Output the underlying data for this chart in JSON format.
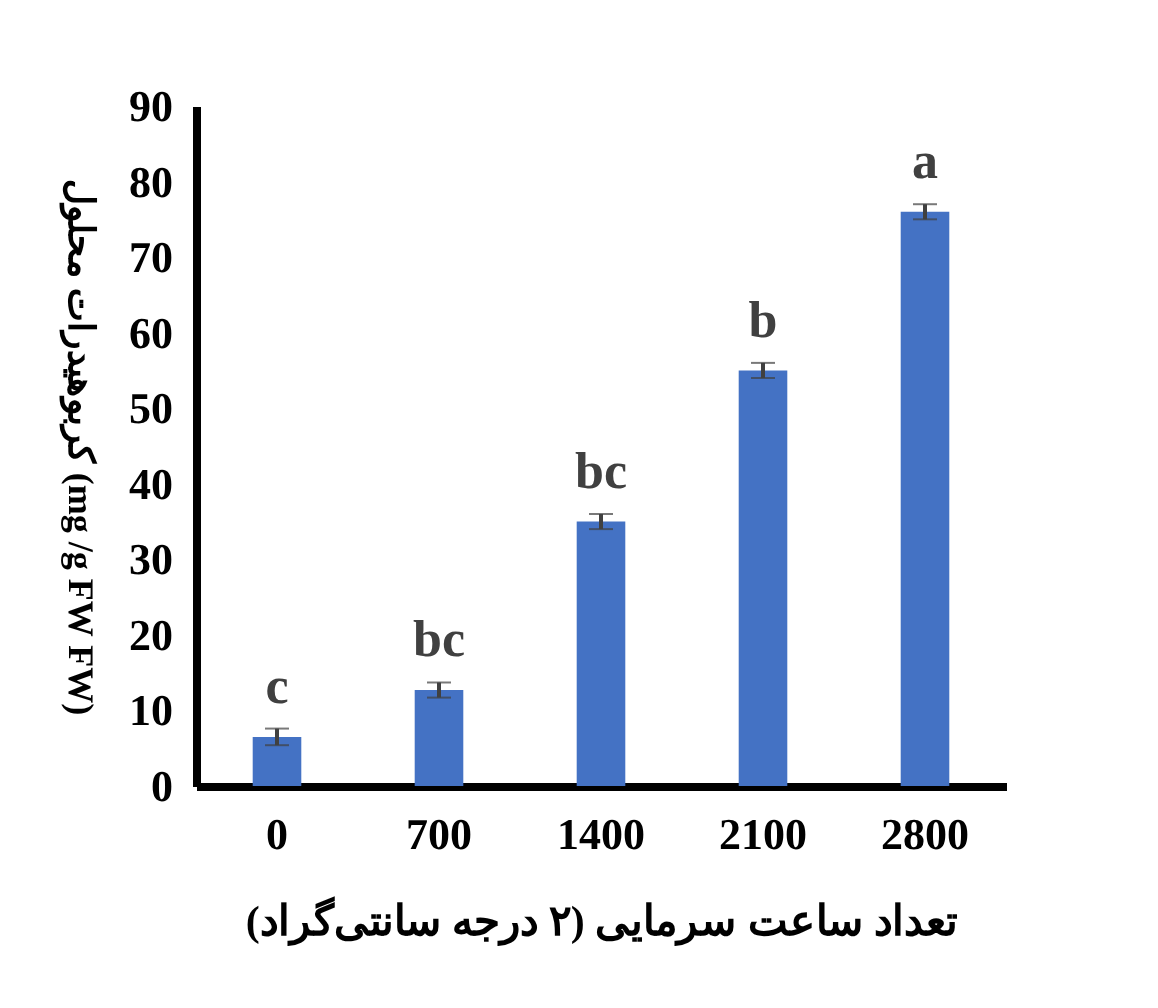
{
  "chart_data": {
    "type": "bar",
    "xlabel": "تعداد ساعت سرمایی (۲ درجه سانتی‌گراد)",
    "ylabel": "کربوهیدرات محلول (mg /g FW FW)",
    "categories": [
      "0",
      "700",
      "1400",
      "2100",
      "2800"
    ],
    "values": [
      6.5,
      12.7,
      35,
      55,
      76
    ],
    "errors": [
      1.1,
      1,
      1,
      1,
      1
    ],
    "color": "#4472c4",
    "ylim": [
      0,
      90
    ],
    "yticks": [
      0,
      10,
      20,
      30,
      40,
      50,
      60,
      70,
      80,
      90
    ],
    "grid": false,
    "annotations": [
      "c",
      "bc",
      "bc",
      "b",
      "a"
    ]
  }
}
